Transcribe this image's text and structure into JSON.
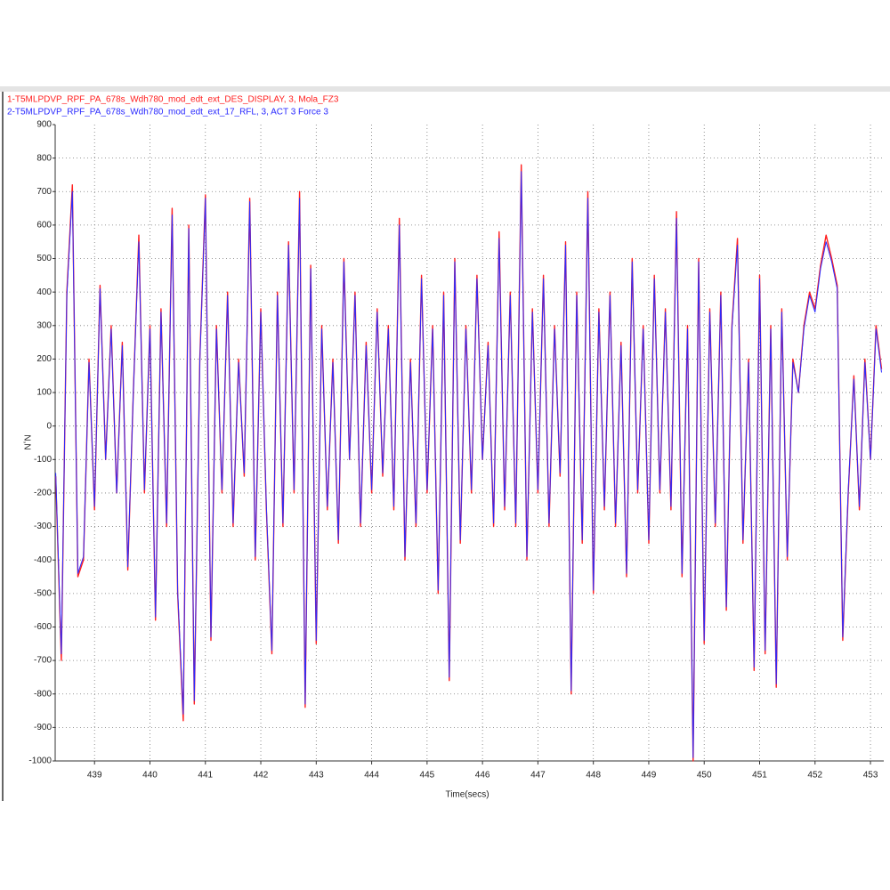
{
  "chart_data": {
    "type": "line",
    "legend": [
      "1-T5MLPDVP_RPF_PA_678s_Wdh780_mod_edt_ext_DES_DISPLAY, 3, Mola_FZ3",
      "2-T5MLPDVP_RPF_PA_678s_Wdh780_mod_edt_ext_17_RFL, 3, ACT 3 Force 3"
    ],
    "x_label": "Time(secs)",
    "y_label": "N,N",
    "x": [
      438.3,
      438.4,
      438.5,
      438.6,
      438.7,
      438.8,
      438.9,
      439,
      439.1,
      439.2,
      439.3,
      439.4,
      439.5,
      439.6,
      439.7,
      439.8,
      439.9,
      440,
      440.1,
      440.2,
      440.3,
      440.4,
      440.5,
      440.6,
      440.7,
      440.8,
      440.9,
      441,
      441.1,
      441.2,
      441.3,
      441.4,
      441.5,
      441.6,
      441.7,
      441.8,
      441.9,
      442,
      442.1,
      442.2,
      442.3,
      442.4,
      442.5,
      442.6,
      442.7,
      442.8,
      442.9,
      443,
      443.1,
      443.2,
      443.3,
      443.4,
      443.5,
      443.6,
      443.7,
      443.8,
      443.9,
      444,
      444.1,
      444.2,
      444.3,
      444.4,
      444.5,
      444.6,
      444.7,
      444.8,
      444.9,
      445,
      445.1,
      445.2,
      445.3,
      445.4,
      445.5,
      445.6,
      445.7,
      445.8,
      445.9,
      446,
      446.1,
      446.2,
      446.3,
      446.4,
      446.5,
      446.6,
      446.7,
      446.8,
      446.9,
      447,
      447.1,
      447.2,
      447.3,
      447.4,
      447.5,
      447.6,
      447.7,
      447.8,
      447.9,
      448,
      448.1,
      448.2,
      448.3,
      448.4,
      448.5,
      448.6,
      448.7,
      448.8,
      448.9,
      449,
      449.1,
      449.2,
      449.3,
      449.4,
      449.5,
      449.6,
      449.7,
      449.8,
      449.9,
      450,
      450.1,
      450.2,
      450.3,
      450.4,
      450.5,
      450.6,
      450.7,
      450.8,
      450.9,
      451,
      451.1,
      451.2,
      451.3,
      451.4,
      451.5,
      451.6,
      451.7,
      451.8,
      451.9,
      452,
      452.1,
      452.2,
      452.3,
      452.4,
      452.5,
      452.6,
      452.7,
      452.8,
      452.9,
      453,
      453.1,
      453.2
    ],
    "series": [
      {
        "name": "1-T5MLPDVP_RPF_PA_678s_Wdh780_mod_edt_ext_DES_DISPLAY, 3, Mola_FZ3",
        "color": "#ff2020",
        "values": [
          -150,
          -700,
          400,
          720,
          -450,
          -400,
          200,
          -250,
          420,
          -100,
          300,
          -200,
          250,
          -430,
          100,
          570,
          -200,
          300,
          -580,
          350,
          -300,
          650,
          -500,
          -880,
          600,
          -830,
          200,
          690,
          -640,
          300,
          -200,
          400,
          -300,
          200,
          -150,
          680,
          -400,
          350,
          -250,
          -680,
          400,
          -300,
          550,
          -200,
          700,
          -840,
          480,
          -650,
          300,
          -250,
          200,
          -350,
          500,
          -100,
          400,
          -300,
          250,
          -200,
          350,
          -150,
          300,
          -250,
          620,
          -400,
          200,
          -300,
          450,
          -200,
          300,
          -500,
          400,
          -760,
          500,
          -350,
          300,
          -200,
          450,
          -100,
          250,
          -300,
          580,
          -250,
          400,
          -300,
          780,
          -400,
          350,
          -200,
          450,
          -300,
          300,
          -150,
          550,
          -800,
          400,
          -350,
          700,
          -500,
          350,
          -250,
          400,
          -300,
          250,
          -450,
          500,
          -200,
          300,
          -350,
          450,
          -200,
          350,
          -250,
          640,
          -450,
          300,
          -1000,
          500,
          -650,
          350,
          -300,
          400,
          -550,
          300,
          560,
          -350,
          200,
          -730,
          450,
          -680,
          300,
          -780,
          350,
          -400,
          200,
          100,
          300,
          400,
          350,
          480,
          570,
          500,
          420,
          -640,
          -200,
          150,
          -250,
          200,
          -100,
          300,
          170
        ]
      },
      {
        "name": "2-T5MLPDVP_RPF_PA_678s_Wdh780_mod_edt_ext_17_RFL, 3, ACT 3 Force 3",
        "color": "#2a2aff",
        "values": [
          -140,
          -680,
          390,
          700,
          -440,
          -390,
          190,
          -240,
          410,
          -100,
          290,
          -200,
          240,
          -420,
          100,
          550,
          -190,
          290,
          -570,
          340,
          -290,
          630,
          -490,
          -860,
          590,
          -820,
          190,
          680,
          -630,
          290,
          -190,
          390,
          -290,
          190,
          -140,
          670,
          -390,
          340,
          -240,
          -670,
          390,
          -290,
          540,
          -190,
          680,
          -830,
          470,
          -640,
          290,
          -240,
          190,
          -340,
          490,
          -100,
          390,
          -290,
          240,
          -190,
          340,
          -140,
          290,
          -240,
          600,
          -390,
          190,
          -290,
          440,
          -190,
          290,
          -490,
          390,
          -750,
          490,
          -340,
          290,
          -190,
          440,
          -100,
          240,
          -290,
          560,
          -240,
          390,
          -290,
          760,
          -390,
          340,
          -190,
          440,
          -290,
          290,
          -140,
          540,
          -790,
          390,
          -340,
          680,
          -490,
          340,
          -240,
          390,
          -290,
          240,
          -440,
          490,
          -190,
          290,
          -340,
          440,
          -190,
          340,
          -240,
          620,
          -440,
          290,
          -990,
          490,
          -640,
          340,
          -290,
          390,
          -540,
          290,
          540,
          -340,
          190,
          -720,
          440,
          -670,
          290,
          -770,
          340,
          -390,
          190,
          100,
          290,
          390,
          340,
          470,
          550,
          490,
          410,
          -630,
          -190,
          140,
          -240,
          190,
          -100,
          290,
          160
        ]
      }
    ],
    "xlim": [
      438.29,
      453.24
    ],
    "xticks": [
      439,
      440,
      441,
      442,
      443,
      444,
      445,
      446,
      447,
      448,
      449,
      450,
      451,
      452,
      453
    ],
    "ylim": [
      -1000,
      900
    ],
    "yticks": [
      -1000,
      -900,
      -800,
      -700,
      -600,
      -500,
      -400,
      -300,
      -200,
      -100,
      0,
      100,
      200,
      300,
      400,
      500,
      600,
      700,
      800,
      900
    ],
    "grid": true
  }
}
